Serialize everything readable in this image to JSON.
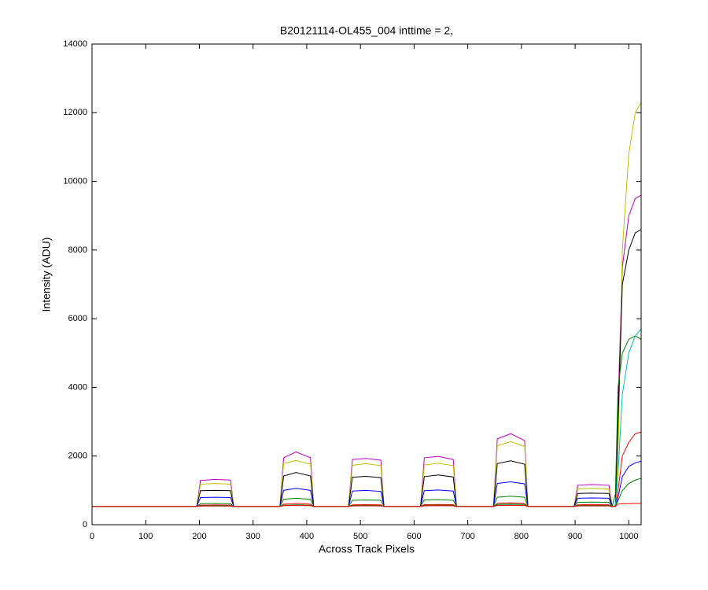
{
  "chart_data": {
    "type": "line",
    "title": "B20121114-OL455_004 inttime = 2,",
    "x_label": "Across Track Pixels",
    "y_label": "Intensity (ADU)",
    "x": [
      0,
      195,
      202,
      230,
      258,
      264,
      350,
      357,
      380,
      407,
      413,
      478,
      485,
      510,
      538,
      544,
      612,
      619,
      645,
      673,
      679,
      748,
      755,
      780,
      806,
      812,
      898,
      905,
      930,
      963,
      969,
      975,
      980,
      988,
      1000,
      1012,
      1023
    ],
    "xlim": [
      0,
      1023
    ],
    "xticks": [
      0,
      100,
      200,
      300,
      400,
      500,
      600,
      700,
      800,
      900,
      1000
    ],
    "ylim": [
      0,
      14000
    ],
    "yticks": [
      0,
      2000,
      4000,
      6000,
      8000,
      10000,
      12000,
      14000
    ],
    "grid": false,
    "series": [
      {
        "color": "#bf00bf",
        "values": [
          530,
          530,
          1290,
          1320,
          1300,
          530,
          530,
          1950,
          2120,
          1950,
          530,
          530,
          1900,
          1930,
          1880,
          530,
          530,
          1950,
          1990,
          1900,
          530,
          530,
          2500,
          2650,
          2450,
          530,
          530,
          1150,
          1170,
          1150,
          530,
          560,
          3500,
          7500,
          9000,
          9500,
          9600
        ]
      },
      {
        "color": "#bfbf00",
        "values": [
          530,
          530,
          1180,
          1200,
          1180,
          530,
          530,
          1780,
          1870,
          1760,
          530,
          530,
          1730,
          1780,
          1720,
          530,
          530,
          1740,
          1790,
          1720,
          530,
          530,
          2300,
          2420,
          2280,
          530,
          530,
          1040,
          1060,
          1040,
          530,
          540,
          2000,
          8000,
          10800,
          12000,
          12300
        ]
      },
      {
        "color": "#000000",
        "values": [
          530,
          530,
          990,
          1000,
          990,
          530,
          530,
          1420,
          1520,
          1420,
          530,
          530,
          1380,
          1410,
          1370,
          530,
          530,
          1400,
          1450,
          1390,
          530,
          530,
          1780,
          1860,
          1760,
          530,
          530,
          910,
          920,
          910,
          530,
          540,
          3000,
          7000,
          8000,
          8500,
          8600
        ]
      },
      {
        "color": "#0000ff",
        "values": [
          530,
          530,
          790,
          800,
          790,
          530,
          530,
          1000,
          1060,
          1000,
          530,
          530,
          980,
          1000,
          970,
          530,
          530,
          990,
          1010,
          980,
          530,
          530,
          1200,
          1250,
          1190,
          530,
          530,
          770,
          780,
          770,
          530,
          530,
          800,
          1400,
          1700,
          1800,
          1850
        ]
      },
      {
        "color": "#008000",
        "values": [
          530,
          530,
          610,
          620,
          610,
          530,
          530,
          740,
          770,
          740,
          530,
          530,
          710,
          720,
          710,
          530,
          530,
          720,
          730,
          710,
          530,
          530,
          800,
          830,
          800,
          530,
          530,
          650,
          660,
          650,
          530,
          900,
          4000,
          5000,
          5400,
          5500,
          5400
        ]
      },
      {
        "color": "#ff0000",
        "values": [
          530,
          530,
          570,
          575,
          570,
          530,
          530,
          600,
          620,
          600,
          530,
          530,
          580,
          585,
          580,
          530,
          530,
          585,
          590,
          585,
          530,
          530,
          620,
          640,
          620,
          530,
          530,
          580,
          590,
          580,
          530,
          530,
          1000,
          2000,
          2400,
          2650,
          2700
        ]
      },
      {
        "color": "#00bfbf",
        "values": [
          530,
          530,
          540,
          545,
          540,
          530,
          530,
          555,
          560,
          555,
          530,
          530,
          545,
          550,
          545,
          530,
          530,
          550,
          555,
          550,
          530,
          530,
          565,
          570,
          565,
          530,
          530,
          545,
          545,
          545,
          530,
          530,
          1500,
          3800,
          5000,
          5500,
          5700
        ]
      },
      {
        "color": "#008000",
        "values": [
          530,
          530,
          555,
          560,
          555,
          530,
          530,
          570,
          580,
          570,
          530,
          530,
          560,
          565,
          560,
          530,
          530,
          565,
          570,
          565,
          530,
          530,
          590,
          600,
          590,
          530,
          530,
          560,
          560,
          560,
          530,
          530,
          700,
          1000,
          1200,
          1300,
          1350
        ]
      },
      {
        "color": "#ff0000",
        "values": [
          530,
          530,
          545,
          550,
          545,
          530,
          530,
          555,
          560,
          555,
          530,
          530,
          550,
          550,
          550,
          530,
          530,
          550,
          555,
          550,
          530,
          530,
          560,
          565,
          560,
          530,
          530,
          550,
          550,
          550,
          530,
          530,
          600,
          610,
          615,
          620,
          620
        ]
      }
    ]
  }
}
